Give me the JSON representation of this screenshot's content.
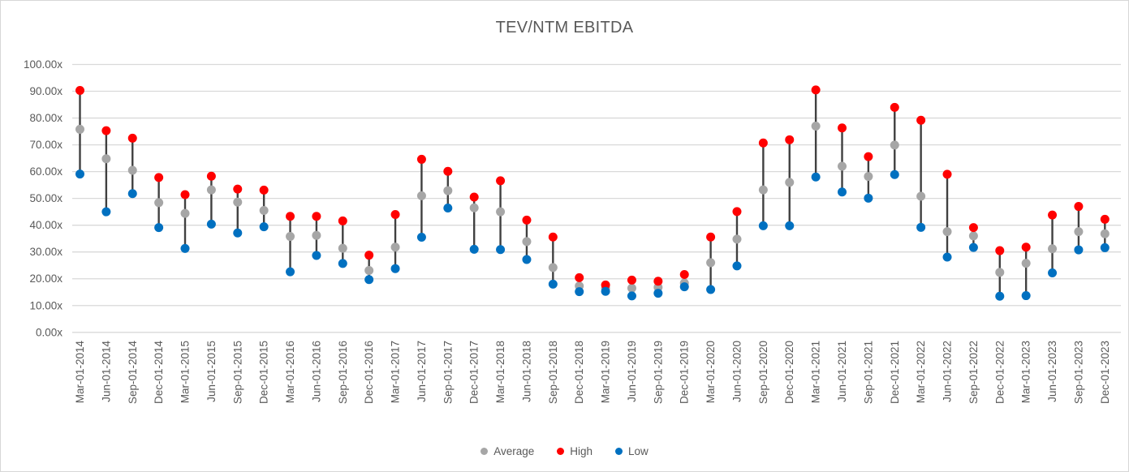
{
  "chart_data": {
    "type": "scatter",
    "subtype": "high-low-average with hi-lo lines",
    "title": "TEV/NTM EBITDA",
    "x_categories": [
      "Mar-01-2014",
      "Jun-01-2014",
      "Sep-01-2014",
      "Dec-01-2014",
      "Mar-01-2015",
      "Jun-01-2015",
      "Sep-01-2015",
      "Dec-01-2015",
      "Mar-01-2016",
      "Jun-01-2016",
      "Sep-01-2016",
      "Dec-01-2016",
      "Mar-01-2017",
      "Jun-01-2017",
      "Sep-01-2017",
      "Dec-01-2017",
      "Mar-01-2018",
      "Jun-01-2018",
      "Sep-01-2018",
      "Dec-01-2018",
      "Mar-01-2019",
      "Jun-01-2019",
      "Sep-01-2019",
      "Dec-01-2019",
      "Mar-01-2020",
      "Jun-01-2020",
      "Sep-01-2020",
      "Dec-01-2020",
      "Mar-01-2021",
      "Jun-01-2021",
      "Sep-01-2021",
      "Dec-01-2021",
      "Mar-01-2022",
      "Jun-01-2022",
      "Sep-01-2022",
      "Dec-01-2022",
      "Mar-01-2023",
      "Jun-01-2023",
      "Sep-01-2023",
      "Dec-01-2023"
    ],
    "series": [
      {
        "name": "Average",
        "color": "#A6A6A6",
        "values": [
          75.8,
          64.8,
          60.5,
          48.4,
          44.4,
          53.2,
          48.6,
          45.5,
          35.8,
          36.2,
          31.4,
          23.1,
          31.8,
          51.0,
          52.9,
          46.5,
          45.0,
          33.9,
          24.2,
          17.3,
          16.5,
          16.5,
          16.8,
          18.4,
          26.0,
          34.8,
          53.2,
          56.0,
          77.0,
          62.0,
          58.2,
          69.9,
          50.8,
          37.6,
          36.0,
          22.4,
          25.8,
          31.2,
          37.6,
          36.8
        ]
      },
      {
        "name": "High",
        "color": "#FF0000",
        "values": [
          90.3,
          75.3,
          72.5,
          57.8,
          51.4,
          58.3,
          53.5,
          53.1,
          43.3,
          43.3,
          41.6,
          28.8,
          44.0,
          64.6,
          60.1,
          50.5,
          56.6,
          41.9,
          35.6,
          20.4,
          17.7,
          19.5,
          19.1,
          21.6,
          35.6,
          45.1,
          70.7,
          71.9,
          90.5,
          76.3,
          65.6,
          84.0,
          79.2,
          59.0,
          39.1,
          30.5,
          31.8,
          43.8,
          47.0,
          42.2
        ]
      },
      {
        "name": "Low",
        "color": "#0070C0",
        "values": [
          59.1,
          45.0,
          51.8,
          39.1,
          31.3,
          40.4,
          37.1,
          39.4,
          22.6,
          28.7,
          25.7,
          19.7,
          23.8,
          35.5,
          46.4,
          31.0,
          30.9,
          27.2,
          18.0,
          15.2,
          15.3,
          13.6,
          14.6,
          17.0,
          16.0,
          24.8,
          39.8,
          39.8,
          58.0,
          52.4,
          50.1,
          58.9,
          39.2,
          28.1,
          31.7,
          13.5,
          13.7,
          22.2,
          30.8,
          31.6
        ]
      }
    ],
    "y_axis": {
      "min": 0,
      "max": 100,
      "step": 10,
      "tick_labels": [
        "100.00x",
        "90.00x",
        "80.00x",
        "70.00x",
        "60.00x",
        "50.00x",
        "40.00x",
        "30.00x",
        "20.00x",
        "10.00x",
        "0.00x"
      ]
    },
    "legend": {
      "position": "bottom",
      "entries": [
        "Average",
        "High",
        "Low"
      ]
    },
    "grid": "horizontal gridlines on",
    "colors": {
      "hilo_line": "#404040",
      "gridline": "#D9D9D9",
      "text": "#595959"
    }
  }
}
